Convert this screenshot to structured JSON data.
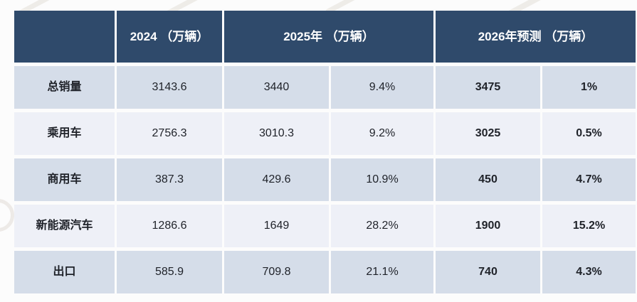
{
  "chart_data": {
    "type": "table",
    "title": "",
    "unit": "万辆",
    "headers": {
      "label": "",
      "y2024": "2024 （万辆）",
      "y2025": "2025年 （万辆）",
      "y2026": "2026年预测 （万辆）"
    },
    "rows": [
      {
        "label": "总销量",
        "v2024": "3143.6",
        "v2025": "3440",
        "g2025": "9.4%",
        "v2026": "3475",
        "g2026": "1%"
      },
      {
        "label": "乘用车",
        "v2024": "2756.3",
        "v2025": "3010.3",
        "g2025": "9.2%",
        "v2026": "3025",
        "g2026": "0.5%"
      },
      {
        "label": "商用车",
        "v2024": "387.3",
        "v2025": "429.6",
        "g2025": "10.9%",
        "v2026": "450",
        "g2026": "4.7%"
      },
      {
        "label": "新能源汽车",
        "v2024": "1286.6",
        "v2025": "1649",
        "g2025": "28.2%",
        "v2026": "1900",
        "g2026": "15.2%"
      },
      {
        "label": "出口",
        "v2024": "585.9",
        "v2025": "709.8",
        "g2025": "21.1%",
        "v2026": "740",
        "g2026": "4.3%"
      }
    ],
    "colors": {
      "header_bg": "#2f4a6b",
      "header_text": "#ffffff",
      "row_odd_bg": "#d5dde9",
      "row_even_bg": "#eef0f7",
      "body_text": "#1f2229"
    }
  }
}
